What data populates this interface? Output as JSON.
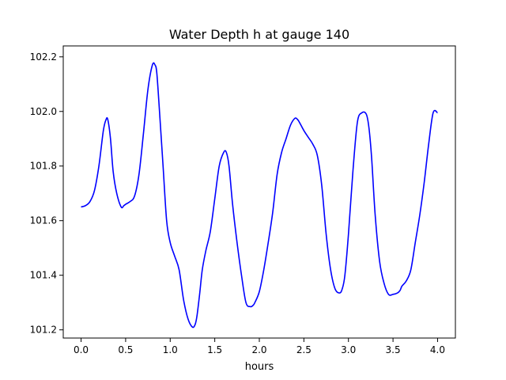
{
  "chart_data": {
    "type": "line",
    "title": "Water Depth h at gauge 140",
    "xlabel": "hours",
    "ylabel": "",
    "xlim": [
      -0.2,
      4.2
    ],
    "ylim": [
      101.17,
      102.24
    ],
    "xticks": [
      0.0,
      0.5,
      1.0,
      1.5,
      2.0,
      2.5,
      3.0,
      3.5,
      4.0
    ],
    "xtick_labels": [
      "0.0",
      "0.5",
      "1.0",
      "1.5",
      "2.0",
      "2.5",
      "3.0",
      "3.5",
      "4.0"
    ],
    "yticks": [
      101.2,
      101.4,
      101.6,
      101.8,
      102.0,
      102.2
    ],
    "ytick_labels": [
      "101.2",
      "101.4",
      "101.6",
      "101.8",
      "102.0",
      "102.2"
    ],
    "grid": false,
    "series": [
      {
        "color": "#0000ff",
        "x": [
          0.0,
          0.05,
          0.1,
          0.15,
          0.2,
          0.25,
          0.28,
          0.3,
          0.33,
          0.36,
          0.4,
          0.45,
          0.48,
          0.5,
          0.55,
          0.6,
          0.65,
          0.7,
          0.75,
          0.8,
          0.83,
          0.85,
          0.88,
          0.92,
          0.96,
          1.0,
          1.05,
          1.1,
          1.15,
          1.2,
          1.25,
          1.28,
          1.3,
          1.33,
          1.36,
          1.4,
          1.45,
          1.5,
          1.55,
          1.6,
          1.63,
          1.66,
          1.7,
          1.75,
          1.8,
          1.85,
          1.9,
          1.93,
          1.95,
          2.0,
          2.05,
          2.1,
          2.15,
          2.2,
          2.25,
          2.3,
          2.35,
          2.4,
          2.43,
          2.45,
          2.5,
          2.55,
          2.6,
          2.65,
          2.7,
          2.75,
          2.8,
          2.85,
          2.9,
          2.93,
          2.96,
          3.0,
          3.05,
          3.1,
          3.15,
          3.2,
          3.23,
          3.26,
          3.3,
          3.35,
          3.4,
          3.45,
          3.5,
          3.55,
          3.58,
          3.6,
          3.65,
          3.7,
          3.75,
          3.8,
          3.85,
          3.9,
          3.95,
          4.0
        ],
        "y": [
          101.65,
          101.655,
          101.67,
          101.71,
          101.8,
          101.93,
          101.97,
          101.97,
          101.9,
          101.78,
          101.7,
          101.65,
          101.655,
          101.66,
          101.67,
          101.69,
          101.77,
          101.92,
          102.08,
          102.17,
          102.17,
          102.14,
          102.0,
          101.8,
          101.6,
          101.52,
          101.47,
          101.42,
          101.31,
          101.24,
          101.21,
          101.22,
          101.25,
          101.33,
          101.42,
          101.49,
          101.56,
          101.68,
          101.8,
          101.85,
          101.85,
          101.8,
          101.66,
          101.52,
          101.4,
          101.3,
          101.285,
          101.29,
          101.3,
          101.34,
          101.42,
          101.52,
          101.63,
          101.77,
          101.85,
          101.9,
          101.95,
          101.975,
          101.97,
          101.96,
          101.93,
          101.905,
          101.88,
          101.84,
          101.73,
          101.55,
          101.42,
          101.35,
          101.335,
          101.35,
          101.4,
          101.55,
          101.78,
          101.96,
          101.995,
          101.99,
          101.94,
          101.83,
          101.62,
          101.45,
          101.37,
          101.33,
          101.33,
          101.335,
          101.345,
          101.36,
          101.38,
          101.42,
          101.52,
          101.62,
          101.74,
          101.88,
          101.995,
          101.995
        ]
      }
    ]
  }
}
